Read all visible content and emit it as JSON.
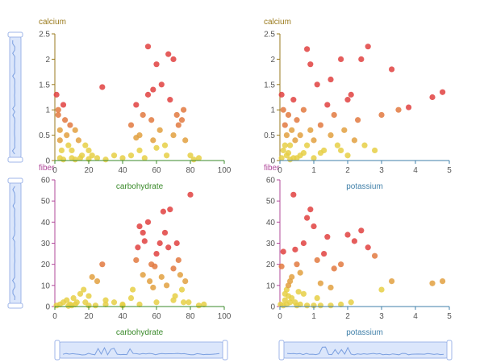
{
  "colors": {
    "calcium": "#9a7a1c",
    "fiber": "#b0489a",
    "carbohydrate": "#3a8a2a",
    "potassium": "#3f7fa8",
    "slider_fill": "#dbe6fb",
    "slider_stroke": "#9fb6e8",
    "dot_palette": [
      "#e0413f",
      "#e2793f",
      "#e2a03f",
      "#e6cf45"
    ]
  },
  "sliders": {
    "vertical": [
      {
        "name": "calcium"
      },
      {
        "name": "fiber"
      }
    ],
    "horizontal": [
      {
        "name": "carbohydrate"
      },
      {
        "name": "potassium"
      }
    ]
  },
  "chart_data": [
    {
      "type": "scatter",
      "ylabel": "calcium",
      "xlabel": "carbohydrate",
      "xlim": [
        0,
        100
      ],
      "ylim": [
        0,
        2.5
      ],
      "xticks": [
        "0",
        "20",
        "40",
        "60",
        "80",
        "100"
      ],
      "yticks": [
        "0",
        "0.5",
        "1",
        "1.5",
        "2",
        "2.5"
      ],
      "points": [
        [
          1,
          1.3
        ],
        [
          2,
          1.0
        ],
        [
          3,
          0.6
        ],
        [
          4,
          0.2
        ],
        [
          5,
          1.1
        ],
        [
          6,
          0.8
        ],
        [
          7,
          0.5
        ],
        [
          8,
          0.3
        ],
        [
          2,
          0.9
        ],
        [
          3,
          0.4
        ],
        [
          9,
          0.7
        ],
        [
          10,
          0.2
        ],
        [
          12,
          0.6
        ],
        [
          14,
          0.4
        ],
        [
          16,
          0.1
        ],
        [
          18,
          0.3
        ],
        [
          20,
          0.2
        ],
        [
          22,
          0.1
        ],
        [
          25,
          0.05
        ],
        [
          28,
          1.45
        ],
        [
          35,
          0.1
        ],
        [
          15,
          0.05
        ],
        [
          10,
          0.05
        ],
        [
          5,
          0.02
        ],
        [
          3,
          0.05
        ],
        [
          12,
          0.02
        ],
        [
          20,
          0.03
        ],
        [
          30,
          0.02
        ],
        [
          40,
          0.05
        ],
        [
          45,
          0.7
        ],
        [
          48,
          1.1
        ],
        [
          50,
          0.5
        ],
        [
          52,
          0.9
        ],
        [
          55,
          1.3
        ],
        [
          58,
          0.4
        ],
        [
          60,
          1.9
        ],
        [
          62,
          0.6
        ],
        [
          65,
          0.3
        ],
        [
          67,
          2.1
        ],
        [
          68,
          1.2
        ],
        [
          70,
          0.5
        ],
        [
          72,
          0.9
        ],
        [
          75,
          0.8
        ],
        [
          77,
          0.4
        ],
        [
          80,
          0.1
        ],
        [
          82,
          0.02
        ],
        [
          85,
          0.05
        ],
        [
          55,
          2.25
        ],
        [
          50,
          0.2
        ],
        [
          53,
          0.05
        ],
        [
          57,
          0.8
        ],
        [
          63,
          1.5
        ],
        [
          66,
          0.1
        ],
        [
          70,
          2.0
        ],
        [
          73,
          0.7
        ],
        [
          76,
          1.0
        ],
        [
          60,
          0.25
        ],
        [
          58,
          1.4
        ],
        [
          45,
          0.1
        ],
        [
          48,
          0.45
        ]
      ]
    },
    {
      "type": "scatter",
      "ylabel": "calcium",
      "xlabel": "potassium",
      "xlim": [
        0,
        5
      ],
      "ylim": [
        0,
        2.5
      ],
      "xticks": [
        "0",
        "1",
        "2",
        "3",
        "4",
        "5"
      ],
      "yticks": [
        "0",
        "0.5",
        "1",
        "1.5",
        "2",
        "2.5"
      ],
      "points": [
        [
          0.05,
          1.3
        ],
        [
          0.1,
          1.0
        ],
        [
          0.15,
          0.7
        ],
        [
          0.2,
          0.5
        ],
        [
          0.25,
          0.9
        ],
        [
          0.3,
          0.3
        ],
        [
          0.1,
          0.2
        ],
        [
          0.05,
          0.05
        ],
        [
          0.2,
          0.1
        ],
        [
          0.35,
          0.6
        ],
        [
          0.4,
          1.2
        ],
        [
          0.45,
          0.4
        ],
        [
          0.5,
          0.8
        ],
        [
          0.6,
          0.5
        ],
        [
          0.7,
          1.0
        ],
        [
          0.8,
          0.3
        ],
        [
          0.9,
          0.6
        ],
        [
          1.0,
          0.4
        ],
        [
          1.1,
          1.5
        ],
        [
          1.2,
          0.7
        ],
        [
          1.3,
          0.2
        ],
        [
          1.4,
          1.1
        ],
        [
          1.5,
          0.5
        ],
        [
          1.6,
          0.9
        ],
        [
          1.7,
          0.3
        ],
        [
          1.8,
          0.2
        ],
        [
          1.9,
          0.6
        ],
        [
          2.0,
          0.1
        ],
        [
          2.1,
          1.3
        ],
        [
          2.2,
          0.4
        ],
        [
          2.3,
          0.8
        ],
        [
          2.5,
          0.3
        ],
        [
          2.6,
          2.25
        ],
        [
          2.8,
          0.2
        ],
        [
          3.0,
          0.9
        ],
        [
          3.3,
          1.8
        ],
        [
          3.5,
          1.0
        ],
        [
          3.8,
          1.05
        ],
        [
          4.5,
          1.25
        ],
        [
          4.8,
          1.35
        ],
        [
          0.8,
          2.2
        ],
        [
          0.9,
          1.9
        ],
        [
          1.5,
          1.6
        ],
        [
          1.8,
          2.0
        ],
        [
          2.4,
          2.0
        ],
        [
          0.3,
          0.02
        ],
        [
          0.5,
          0.05
        ],
        [
          0.6,
          0.1
        ],
        [
          1.0,
          0.05
        ],
        [
          1.2,
          0.15
        ],
        [
          0.15,
          0.3
        ],
        [
          0.25,
          0.15
        ],
        [
          0.4,
          0.05
        ],
        [
          0.7,
          0.15
        ],
        [
          2.0,
          1.2
        ]
      ]
    },
    {
      "type": "scatter",
      "ylabel": "fiber",
      "xlabel": "carbohydrate",
      "xlim": [
        0,
        100
      ],
      "ylim": [
        0,
        60
      ],
      "xticks": [
        "0",
        "20",
        "40",
        "60",
        "80",
        "100"
      ],
      "yticks": [
        "0",
        "10",
        "20",
        "30",
        "40",
        "50",
        "60"
      ],
      "points": [
        [
          1,
          0.5
        ],
        [
          3,
          1
        ],
        [
          5,
          2
        ],
        [
          7,
          3
        ],
        [
          9,
          1
        ],
        [
          11,
          4
        ],
        [
          13,
          2
        ],
        [
          15,
          6
        ],
        [
          17,
          8
        ],
        [
          20,
          5
        ],
        [
          22,
          14
        ],
        [
          25,
          12
        ],
        [
          28,
          20
        ],
        [
          30,
          3
        ],
        [
          35,
          2
        ],
        [
          40,
          1
        ],
        [
          45,
          4
        ],
        [
          48,
          22
        ],
        [
          50,
          38
        ],
        [
          52,
          35
        ],
        [
          55,
          40
        ],
        [
          57,
          20
        ],
        [
          58,
          9
        ],
        [
          60,
          25
        ],
        [
          62,
          30
        ],
        [
          64,
          45
        ],
        [
          66,
          10
        ],
        [
          68,
          46
        ],
        [
          70,
          18
        ],
        [
          72,
          30
        ],
        [
          75,
          8
        ],
        [
          77,
          12
        ],
        [
          79,
          2
        ],
        [
          80,
          53
        ],
        [
          85,
          0.5
        ],
        [
          88,
          1
        ],
        [
          10,
          0.5
        ],
        [
          20,
          0.5
        ],
        [
          30,
          1
        ],
        [
          40,
          0.5
        ],
        [
          50,
          1
        ],
        [
          60,
          2
        ],
        [
          70,
          3
        ],
        [
          52,
          15
        ],
        [
          56,
          12
        ],
        [
          65,
          35
        ],
        [
          67,
          28
        ],
        [
          73,
          22
        ],
        [
          74,
          15
        ],
        [
          46,
          8
        ],
        [
          49,
          28
        ],
        [
          53,
          31
        ],
        [
          59,
          19
        ],
        [
          63,
          14
        ],
        [
          71,
          5
        ],
        [
          76,
          2
        ],
        [
          8,
          0.3
        ],
        [
          12,
          1
        ],
        [
          18,
          2
        ],
        [
          24,
          0.5
        ]
      ]
    },
    {
      "type": "scatter",
      "ylabel": "fiber",
      "xlabel": "potassium",
      "xlim": [
        0,
        5
      ],
      "ylim": [
        0,
        60
      ],
      "xticks": [
        "0",
        "1",
        "2",
        "3",
        "4",
        "5"
      ],
      "yticks": [
        "0",
        "10",
        "20",
        "30",
        "40",
        "50",
        "60"
      ],
      "points": [
        [
          0.02,
          1
        ],
        [
          0.05,
          19
        ],
        [
          0.1,
          26
        ],
        [
          0.15,
          3
        ],
        [
          0.2,
          8
        ],
        [
          0.25,
          5
        ],
        [
          0.3,
          12
        ],
        [
          0.35,
          14
        ],
        [
          0.4,
          53
        ],
        [
          0.45,
          27
        ],
        [
          0.5,
          20
        ],
        [
          0.55,
          7
        ],
        [
          0.6,
          16
        ],
        [
          0.7,
          30
        ],
        [
          0.8,
          42
        ],
        [
          0.9,
          46
        ],
        [
          1.0,
          38
        ],
        [
          1.1,
          22
        ],
        [
          1.2,
          11
        ],
        [
          1.3,
          25
        ],
        [
          1.4,
          33
        ],
        [
          1.5,
          9
        ],
        [
          1.6,
          18
        ],
        [
          1.8,
          20
        ],
        [
          2.0,
          34
        ],
        [
          2.2,
          31
        ],
        [
          2.4,
          36
        ],
        [
          2.6,
          28
        ],
        [
          2.8,
          24
        ],
        [
          3.0,
          8
        ],
        [
          3.3,
          12
        ],
        [
          4.5,
          11
        ],
        [
          4.8,
          12
        ],
        [
          0.1,
          0.5
        ],
        [
          0.2,
          1
        ],
        [
          0.3,
          2
        ],
        [
          0.5,
          0.5
        ],
        [
          0.6,
          1
        ],
        [
          0.8,
          0.5
        ],
        [
          1.0,
          0.5
        ],
        [
          1.2,
          0.5
        ],
        [
          1.5,
          0.5
        ],
        [
          1.8,
          1
        ],
        [
          0.15,
          6
        ],
        [
          0.25,
          10
        ],
        [
          0.35,
          4
        ],
        [
          0.45,
          2
        ],
        [
          0.7,
          6
        ],
        [
          1.1,
          4
        ],
        [
          2.1,
          2
        ]
      ]
    }
  ]
}
